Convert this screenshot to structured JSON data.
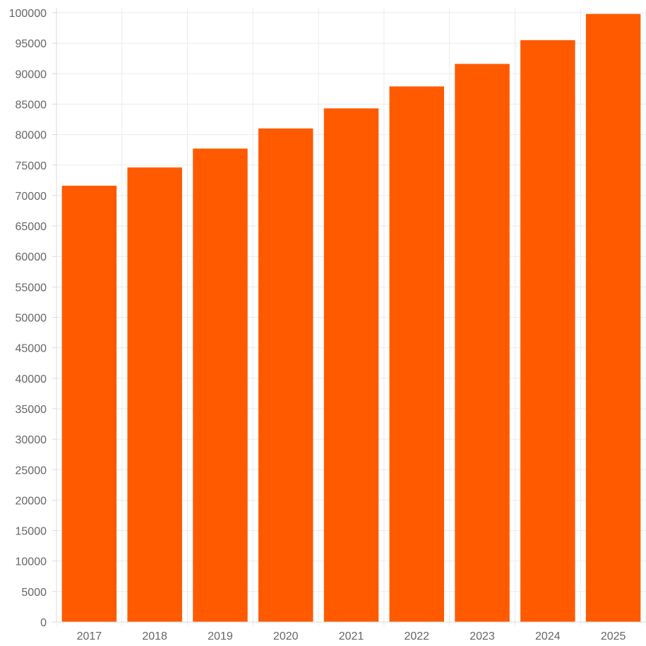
{
  "chart_data": {
    "type": "bar",
    "title": "",
    "xlabel": "",
    "ylabel": "",
    "categories": [
      "2017",
      "2018",
      "2019",
      "2020",
      "2021",
      "2022",
      "2023",
      "2024",
      "2025"
    ],
    "series": [
      {
        "values": [
          71600,
          74600,
          77700,
          81000,
          84300,
          87900,
          91600,
          95500,
          99800
        ]
      }
    ],
    "ylim": [
      0,
      100000
    ],
    "ytick_step": 5000,
    "yticks": [
      "0",
      "5000",
      "10000",
      "15000",
      "20000",
      "25000",
      "30000",
      "35000",
      "40000",
      "45000",
      "50000",
      "55000",
      "60000",
      "65000",
      "70000",
      "75000",
      "80000",
      "85000",
      "90000",
      "95000",
      "100000"
    ],
    "grid": true,
    "legend": "none",
    "colors": {
      "bar": "#ff5a00",
      "grid": "#ebebeb",
      "axis": "#d9d9d9",
      "text": "#666666"
    }
  }
}
